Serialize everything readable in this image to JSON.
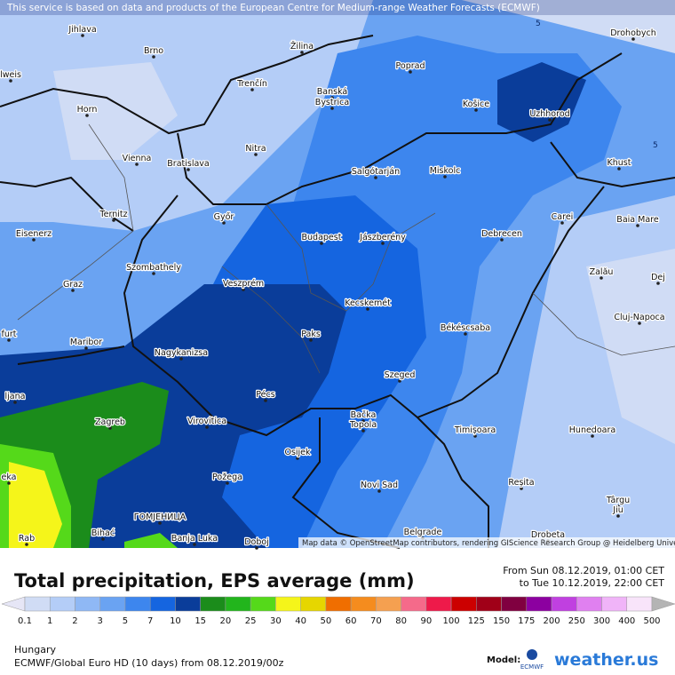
{
  "header": {
    "attribution": "This service is based on data and products of the European Centre for Medium-range Weather Forecasts (ECMWF)",
    "map_credit": "Map data © OpenStreetMap contributors, rendering GIScience Research Group @ Heidelberg University"
  },
  "cities": [
    "Jihlava",
    "Brno",
    "Žilina",
    "Poprad",
    "Drohobych",
    "lweis",
    "Trenčín",
    "Banská",
    "Bystrica",
    "Košice",
    "Uzhhorod",
    "Horn",
    "Nitra",
    "Vienna",
    "Bratislava",
    "Khust",
    "Salgótarján",
    "Miskolc",
    "Ternitz",
    "Győr",
    "Carei",
    "Baia Mare",
    "Eisenerz",
    "Budapest",
    "Jászberény",
    "Debrecen",
    "Szombathely",
    "Zalău",
    "Graz",
    "Veszprém",
    "Dej",
    "Kecskemét",
    "Cluj-Napoca",
    "furt",
    "Békéscsaba",
    "Paks",
    "Maribor",
    "Nagykanizsa",
    "Szeged",
    "ljana",
    "Pécs",
    "Zagreb",
    "Virovitica",
    "Bačka",
    "Topola",
    "Timișoara",
    "Hunedoara",
    "Osijek",
    "Požega",
    "Novi Sad",
    "Reșita",
    "Târgu",
    "Jiu",
    "eka",
    "ГОМЈЕНИЦА",
    "Bihać",
    "Banja Luka",
    "Doboj",
    "Belgrade",
    "Drobeta",
    "Rab"
  ],
  "contour_labels": [
    "5",
    "5"
  ],
  "title": "Total precipitation, EPS average (mm)",
  "period": {
    "from": "From Sun 08.12.2019, 01:00 CET",
    "to": "to Tue 10.12.2019, 22:00 CET"
  },
  "legend": {
    "values": [
      0.1,
      1,
      2,
      3,
      5,
      7,
      10,
      15,
      20,
      25,
      30,
      40,
      50,
      60,
      70,
      80,
      90,
      100,
      125,
      150,
      175,
      200,
      250,
      300,
      400,
      500
    ],
    "colors": [
      "#e6e6f6",
      "#d0dcf5",
      "#b4cdf7",
      "#8fb8f5",
      "#6aa3f2",
      "#3d86ee",
      "#1565e0",
      "#0a3d9a",
      "#1b8c1b",
      "#22b51c",
      "#55d91a",
      "#f5f51a",
      "#e6d600",
      "#f06e00",
      "#f58c1e",
      "#f5a050",
      "#f56a8a",
      "#ee1a4a",
      "#cc0000",
      "#a00018",
      "#800040",
      "#8c00a0",
      "#c040e0",
      "#e080f0",
      "#f0b4f8",
      "#f8e4fa",
      "#b4b4b4"
    ]
  },
  "footer": {
    "region": "Hungary",
    "model_run": "ECMWF/Global Euro HD (10 days) from 08.12.2019/00z",
    "model_label": "Model:",
    "model_name": "ECMWF",
    "brand": "weather.us"
  }
}
